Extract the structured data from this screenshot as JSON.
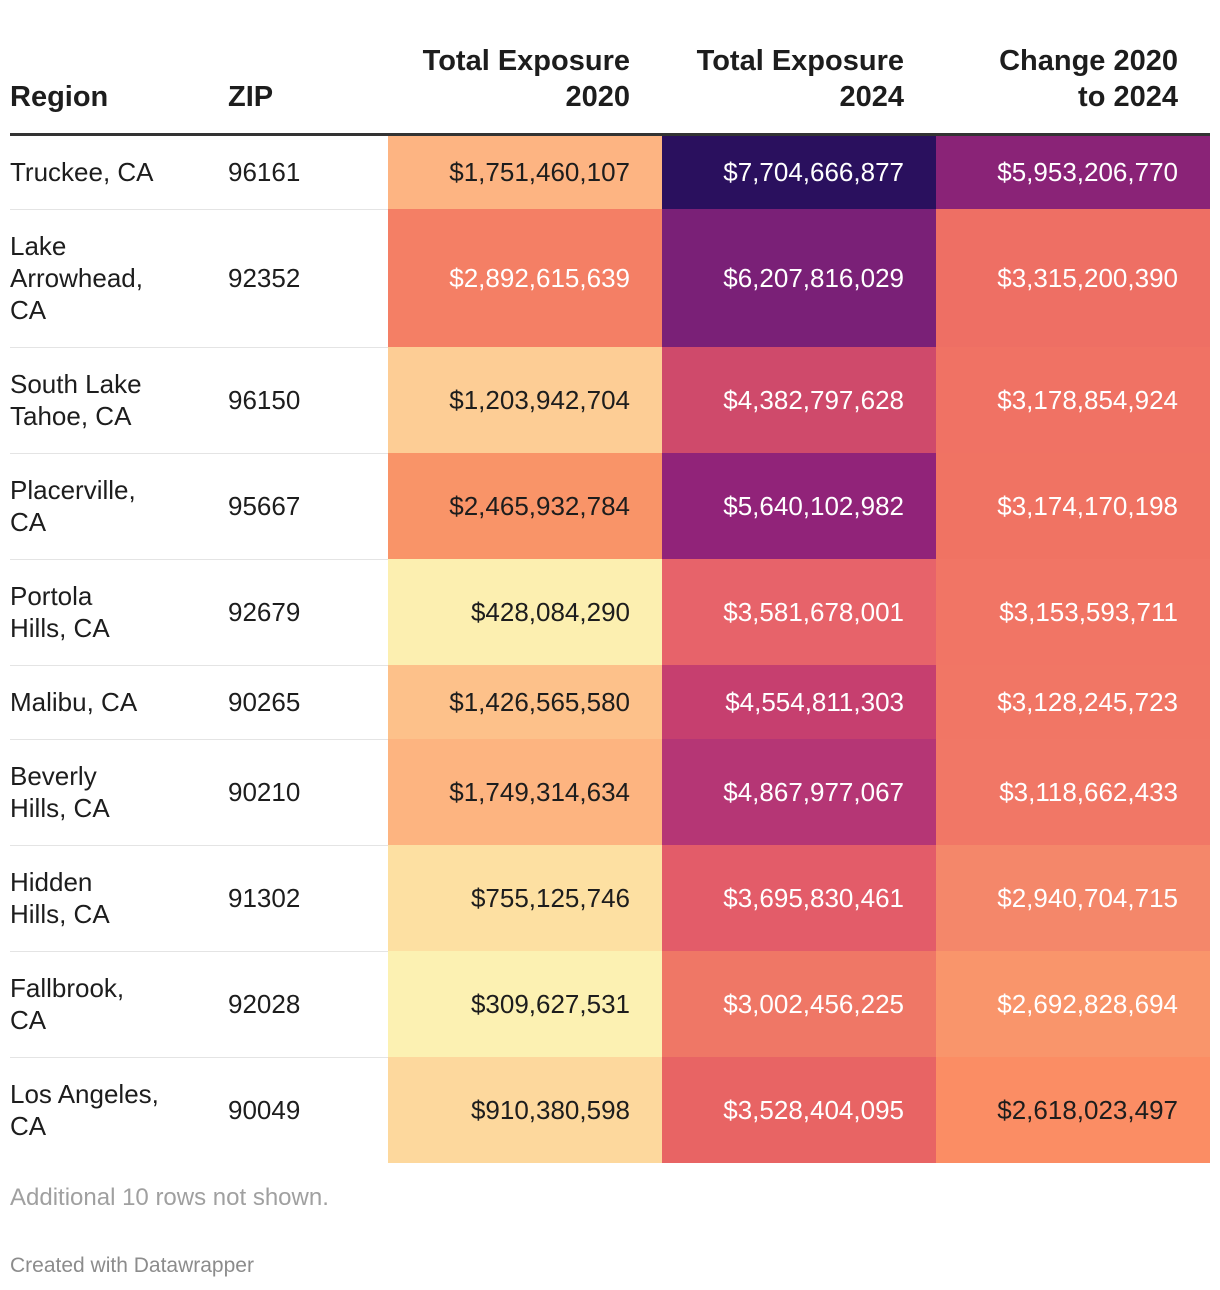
{
  "chart_data": {
    "type": "table",
    "columns": [
      "Region",
      "ZIP",
      "Total Exposure 2020",
      "Total Exposure 2024",
      "Change 2020 to 2024"
    ],
    "rows": [
      {
        "region": "Truckee, CA",
        "zip": "96161",
        "v2020": "$1,751,460,107",
        "v2024": "$7,704,666,877",
        "change": "$5,953,206,770"
      },
      {
        "region": "Lake Arrowhead, CA",
        "zip": "92352",
        "v2020": "$2,892,615,639",
        "v2024": "$6,207,816,029",
        "change": "$3,315,200,390"
      },
      {
        "region": "South Lake Tahoe, CA",
        "zip": "96150",
        "v2020": "$1,203,942,704",
        "v2024": "$4,382,797,628",
        "change": "$3,178,854,924"
      },
      {
        "region": "Placerville, CA",
        "zip": "95667",
        "v2020": "$2,465,932,784",
        "v2024": "$5,640,102,982",
        "change": "$3,174,170,198"
      },
      {
        "region": "Portola Hills, CA",
        "zip": "92679",
        "v2020": "$428,084,290",
        "v2024": "$3,581,678,001",
        "change": "$3,153,593,711"
      },
      {
        "region": "Malibu, CA",
        "zip": "90265",
        "v2020": "$1,426,565,580",
        "v2024": "$4,554,811,303",
        "change": "$3,128,245,723"
      },
      {
        "region": "Beverly Hills, CA",
        "zip": "90210",
        "v2020": "$1,749,314,634",
        "v2024": "$4,867,977,067",
        "change": "$3,118,662,433"
      },
      {
        "region": "Hidden Hills, CA",
        "zip": "91302",
        "v2020": "$755,125,746",
        "v2024": "$3,695,830,461",
        "change": "$2,940,704,715"
      },
      {
        "region": "Fallbrook, CA",
        "zip": "92028",
        "v2020": "$309,627,531",
        "v2024": "$3,002,456,225",
        "change": "$2,692,828,694"
      },
      {
        "region": "Los Angeles, CA",
        "zip": "90049",
        "v2020": "$910,380,598",
        "v2024": "$3,528,404,095",
        "change": "$2,618,023,497"
      }
    ],
    "cell_colors": [
      {
        "v2020": "#fdb482",
        "v2024": "#2a105e",
        "change": "#8a2377"
      },
      {
        "v2020": "#f47f65",
        "v2024": "#7a2077",
        "change": "#ee6f64"
      },
      {
        "v2020": "#fdcd95",
        "v2024": "#cf4a6b",
        "change": "#f07264"
      },
      {
        "v2020": "#f99468",
        "v2024": "#912379",
        "change": "#f07363"
      },
      {
        "v2020": "#fcefb0",
        "v2024": "#e7636a",
        "change": "#f17565"
      },
      {
        "v2020": "#fdc18a",
        "v2024": "#c63f6f",
        "change": "#f17665"
      },
      {
        "v2020": "#fdb480",
        "v2024": "#b53675",
        "change": "#f17766"
      },
      {
        "v2020": "#fde0a2",
        "v2024": "#e35c69",
        "change": "#f4876a"
      },
      {
        "v2020": "#fcf1b2",
        "v2024": "#ef7766",
        "change": "#f9956b"
      },
      {
        "v2020": "#fdd89d",
        "v2024": "#e86464",
        "change": "#fb8d64"
      }
    ],
    "text_colors": [
      {
        "v2020": "#1d1d1d",
        "v2024": "#ffffff",
        "change": "#ffffff"
      },
      {
        "v2020": "#ffffff",
        "v2024": "#ffffff",
        "change": "#ffffff"
      },
      {
        "v2020": "#1d1d1d",
        "v2024": "#ffffff",
        "change": "#ffffff"
      },
      {
        "v2020": "#1d1d1d",
        "v2024": "#ffffff",
        "change": "#ffffff"
      },
      {
        "v2020": "#1d1d1d",
        "v2024": "#ffffff",
        "change": "#ffffff"
      },
      {
        "v2020": "#1d1d1d",
        "v2024": "#ffffff",
        "change": "#ffffff"
      },
      {
        "v2020": "#1d1d1d",
        "v2024": "#ffffff",
        "change": "#ffffff"
      },
      {
        "v2020": "#1d1d1d",
        "v2024": "#ffffff",
        "change": "#ffffff"
      },
      {
        "v2020": "#1d1d1d",
        "v2024": "#ffffff",
        "change": "#ffffff"
      },
      {
        "v2020": "#1d1d1d",
        "v2024": "#ffffff",
        "change": "#1d1d1d"
      }
    ],
    "note": "Additional 10 rows not shown.",
    "credit": "Created with Datawrapper"
  }
}
